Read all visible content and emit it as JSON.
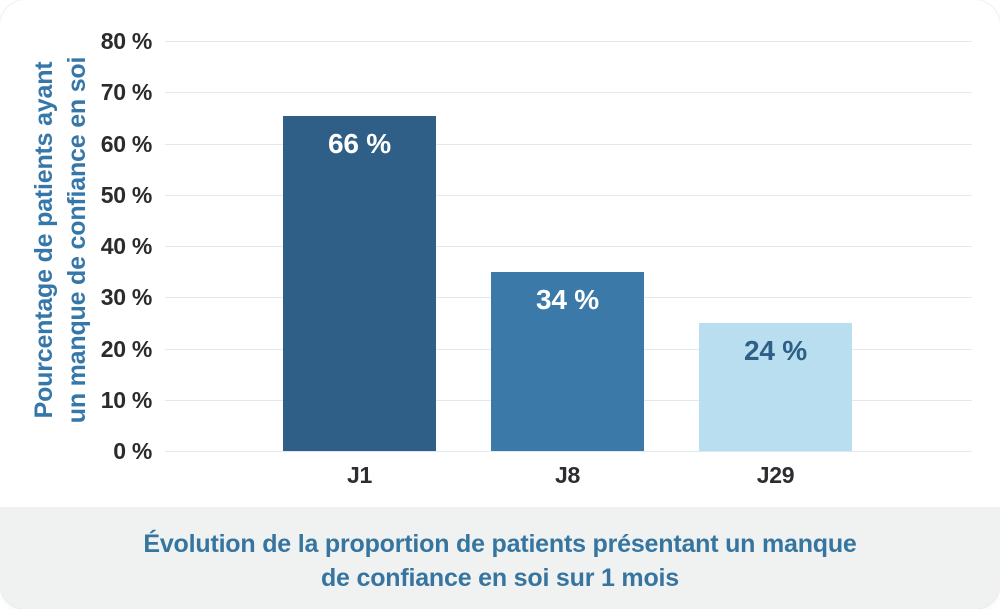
{
  "chart_data": {
    "type": "bar",
    "title": "Évolution de la proportion de patients présentant un manque de confiance en soi sur 1 mois",
    "title_lines": [
      "Évolution de la proportion de patients présentant un manque",
      "de confiance en soi sur 1 mois"
    ],
    "ylabel": "Pourcentage de patients ayant un manque de confiance en soi",
    "ylabel_lines": [
      "Pourcentage de patients ayant",
      "un manque de confiance en soi"
    ],
    "xlabel": "",
    "categories": [
      "J1",
      "J8",
      "J29"
    ],
    "values": [
      66,
      34,
      24
    ],
    "bar_labels": [
      "66 %",
      "34 %",
      "24 %"
    ],
    "bar_render_heights_pct": [
      65.4,
      34.9,
      25.0
    ],
    "ylim": [
      0,
      80
    ],
    "ytick_values": [
      0,
      10,
      20,
      30,
      40,
      50,
      60,
      70,
      80
    ],
    "ytick_labels": [
      "0 %",
      "10 %",
      "20 %",
      "30 %",
      "40 %",
      "50 %",
      "60 %",
      "70 %",
      "80 %"
    ],
    "grid": true,
    "legend": "none",
    "colors": {
      "bars": [
        "#2f5f86",
        "#3a79a8",
        "#b8def0"
      ],
      "bar_label_text": [
        "#ffffff",
        "#ffffff",
        "#2e5f86"
      ],
      "gridline": "#dfe9f2",
      "tick_text": "#2b2b2e",
      "axis_title_text": "#3577a8",
      "caption_text": "#36759f",
      "caption_background": "#f0f1f1",
      "chart_background": "#ffffff"
    }
  }
}
